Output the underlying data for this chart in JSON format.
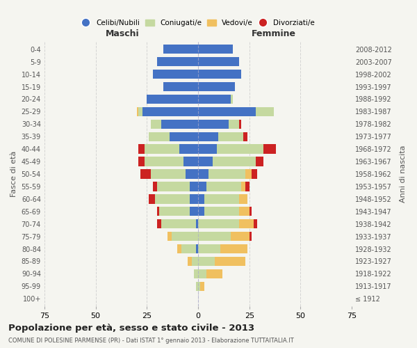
{
  "age_groups": [
    "100+",
    "95-99",
    "90-94",
    "85-89",
    "80-84",
    "75-79",
    "70-74",
    "65-69",
    "60-64",
    "55-59",
    "50-54",
    "45-49",
    "40-44",
    "35-39",
    "30-34",
    "25-29",
    "20-24",
    "15-19",
    "10-14",
    "5-9",
    "0-4"
  ],
  "birth_years": [
    "≤ 1912",
    "1913-1917",
    "1918-1922",
    "1923-1927",
    "1928-1932",
    "1933-1937",
    "1938-1942",
    "1943-1947",
    "1948-1952",
    "1953-1957",
    "1958-1962",
    "1963-1967",
    "1968-1972",
    "1973-1977",
    "1978-1982",
    "1983-1987",
    "1988-1992",
    "1993-1997",
    "1998-2002",
    "2003-2007",
    "2008-2012"
  ],
  "maschi": {
    "celibi": [
      0,
      0,
      0,
      0,
      1,
      0,
      1,
      4,
      4,
      4,
      6,
      7,
      9,
      14,
      18,
      27,
      25,
      17,
      22,
      20,
      17
    ],
    "coniugati": [
      0,
      1,
      2,
      3,
      7,
      13,
      17,
      15,
      17,
      16,
      17,
      19,
      17,
      10,
      5,
      2,
      0,
      0,
      0,
      0,
      0
    ],
    "vedovi": [
      0,
      0,
      0,
      2,
      2,
      2,
      0,
      0,
      0,
      0,
      0,
      0,
      0,
      0,
      0,
      1,
      0,
      0,
      0,
      0,
      0
    ],
    "divorziati": [
      0,
      0,
      0,
      0,
      0,
      0,
      2,
      1,
      3,
      2,
      5,
      3,
      3,
      0,
      0,
      0,
      0,
      0,
      0,
      0,
      0
    ]
  },
  "femmine": {
    "nubili": [
      0,
      0,
      0,
      0,
      0,
      0,
      0,
      3,
      3,
      4,
      5,
      7,
      9,
      10,
      15,
      28,
      16,
      18,
      21,
      20,
      17
    ],
    "coniugate": [
      0,
      1,
      4,
      8,
      11,
      16,
      20,
      17,
      17,
      17,
      18,
      21,
      23,
      12,
      5,
      9,
      1,
      0,
      0,
      0,
      0
    ],
    "vedove": [
      0,
      2,
      8,
      15,
      13,
      9,
      7,
      5,
      4,
      2,
      3,
      0,
      0,
      0,
      0,
      0,
      0,
      0,
      0,
      0,
      0
    ],
    "divorziate": [
      0,
      0,
      0,
      0,
      0,
      1,
      2,
      1,
      0,
      2,
      3,
      4,
      6,
      2,
      1,
      0,
      0,
      0,
      0,
      0,
      0
    ]
  },
  "color_celibi": "#4472c4",
  "color_coniugati": "#c5d9a0",
  "color_vedovi": "#f0c060",
  "color_divorziati": "#cc2222",
  "title": "Popolazione per età, sesso e stato civile - 2013",
  "subtitle": "COMUNE DI POLESINE PARMENSE (PR) - Dati ISTAT 1° gennaio 2013 - Elaborazione TUTTAITALIA.IT",
  "xlabel_left": "Maschi",
  "xlabel_right": "Femmine",
  "ylabel_left": "Fasce di età",
  "ylabel_right": "Anni di nascita",
  "xlim": 75,
  "background_color": "#f5f5f0",
  "grid_color": "#cccccc"
}
